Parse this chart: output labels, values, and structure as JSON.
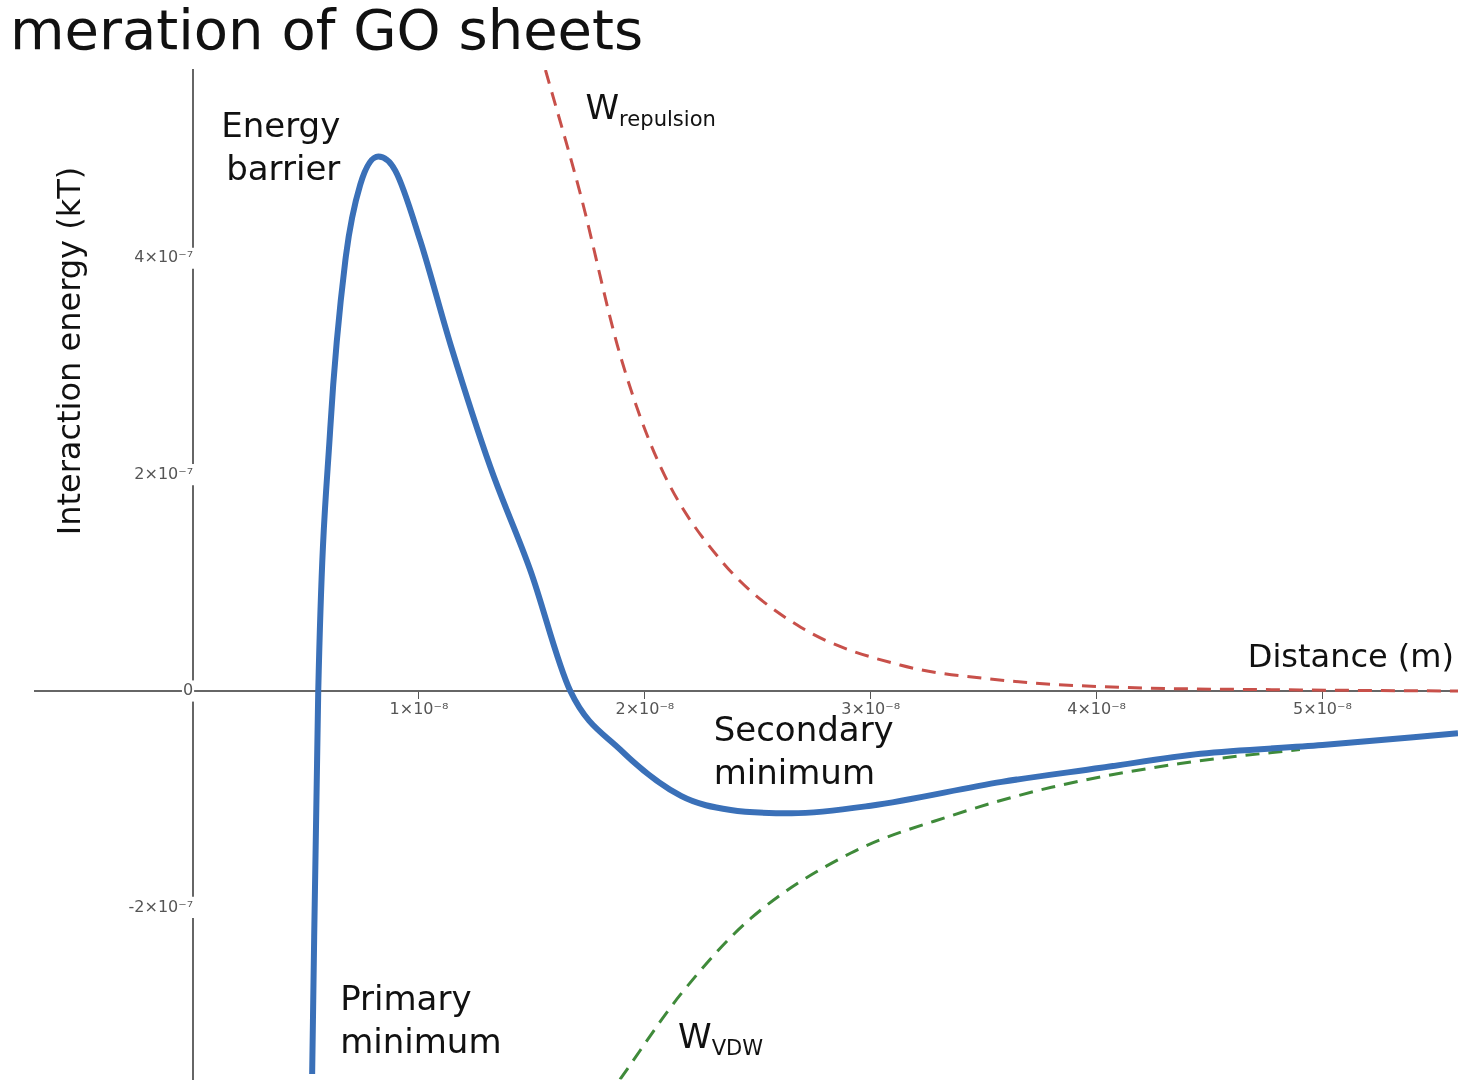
{
  "chart_data": {
    "type": "line",
    "title": "meration of GO sheets",
    "xlabel": "Distance (m)",
    "ylabel": "Interaction energy (kT)",
    "xlim": [
      -7e-09,
      5.6e-08
    ],
    "ylim": [
      -3.59e-07,
      5.74e-07
    ],
    "xticks": [
      {
        "value": 1e-08,
        "label": "1×10⁻⁸"
      },
      {
        "value": 2e-08,
        "label": "2×10⁻⁸"
      },
      {
        "value": 3e-08,
        "label": "3×10⁻⁸"
      },
      {
        "value": 4e-08,
        "label": "4×10⁻⁸"
      },
      {
        "value": 5e-08,
        "label": "5×10⁻⁸"
      }
    ],
    "yticks": [
      {
        "value": -2e-07,
        "label": "-2×10⁻⁷"
      },
      {
        "value": 0,
        "label": "0"
      },
      {
        "value": 2e-07,
        "label": "2×10⁻⁷"
      },
      {
        "value": 4e-07,
        "label": "4×10⁻⁷"
      }
    ],
    "series": [
      {
        "color": "#3a70b8",
        "line_style": "solid",
        "x": [
          5.27e-09,
          5.54e-09,
          6.07e-09,
          6.74e-09,
          7.4e-09,
          8.2e-09,
          8.95e-09,
          1.006e-08,
          1.14e-08,
          1.316e-08,
          1.494e-08,
          1.67e-08,
          1.89e-08,
          2.16e-08,
          2.38e-08,
          2.65e-08,
          3e-08,
          3.58e-08,
          4.02e-08,
          4.46e-08,
          5e-08,
          5.6e-08
        ],
        "values": [
          -3.54e-07,
          0,
          2.42e-07,
          3.98e-07,
          4.68e-07,
          4.94e-07,
          4.81e-07,
          4.16e-07,
          3.2e-07,
          2.07e-07,
          1.11e-07,
          0,
          -5.4e-08,
          -9.7e-08,
          -1.1e-07,
          -1.13e-07,
          -1.06e-07,
          -8.4e-08,
          -7.1e-08,
          -5.8e-08,
          -5e-08,
          -3.9e-08
        ]
      },
      {
        "name": "W$_{repulsion}$",
        "color": "#c8504a",
        "line_style": "dashed",
        "x": [
          1.56e-08,
          1.715e-08,
          1.89e-08,
          2.07e-08,
          2.34e-08,
          2.69e-08,
          3.13e-08,
          3.58e-08,
          4.02e-08,
          4.9e-08,
          5.6e-08
        ],
        "values": [
          5.74e-07,
          4.59e-07,
          3.11e-07,
          2.07e-07,
          1.2e-07,
          5.9e-08,
          2.4e-08,
          1e-08,
          4e-09,
          1e-09,
          0
        ]
      },
      {
        "name": "W$_{VDW}$",
        "color": "#3f8a3a",
        "line_style": "dashed",
        "x": [
          1.89e-08,
          2.16e-08,
          2.47e-08,
          2.91e-08,
          3.36e-08,
          3.8e-08,
          4.37e-08,
          4.9e-08
        ],
        "values": [
          -3.59e-07,
          -2.8e-07,
          -2.1e-07,
          -1.5e-07,
          -1.15e-07,
          -8.9e-08,
          -6.7e-08,
          -5.4e-08
        ]
      }
    ],
    "annotations": [
      {
        "text": "Energy barrier",
        "x": 8.2e-09,
        "y": 4.94e-07
      },
      {
        "text": "Secondary minimum",
        "x": 2.65e-08,
        "y": -1.13e-07
      },
      {
        "text": "Primary minimum",
        "x": 5.27e-09,
        "y": -3.54e-07
      }
    ],
    "legend": false
  }
}
